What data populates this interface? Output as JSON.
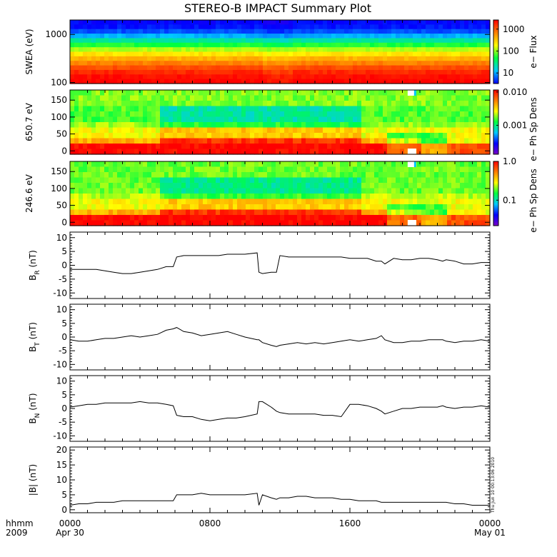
{
  "title": "STEREO-B IMPACT Summary Plot",
  "timestamp": "Thu Jun 10 00:13:06 2010",
  "x_axis": {
    "left_labels": [
      "hhmm",
      "2009"
    ],
    "ticks": [
      {
        "label": "0000",
        "sub": "Apr 30",
        "hour": 0
      },
      {
        "label": "0800",
        "sub": "",
        "hour": 8
      },
      {
        "label": "1600",
        "sub": "",
        "hour": 16
      },
      {
        "label": "0000",
        "sub": "May 01",
        "hour": 24
      }
    ],
    "minor_hours": [
      1,
      2,
      3,
      4,
      5,
      6,
      7,
      9,
      10,
      11,
      12,
      13,
      14,
      15,
      17,
      18,
      19,
      20,
      21,
      22,
      23
    ]
  },
  "colors": {
    "frame": "#000000",
    "trace": "#000000",
    "palette": [
      "#7a00c8",
      "#0000ff",
      "#00c8ff",
      "#00ff40",
      "#ffff00",
      "#ff8000",
      "#ff0000"
    ]
  },
  "chart_data": [
    {
      "type": "heatmap",
      "ylabel": "SWEA (eV)",
      "ylog": true,
      "yticks": [
        {
          "label": "1000",
          "value": 1000
        },
        {
          "label": "100",
          "value": 100
        }
      ],
      "colorbar": {
        "label": "e− Flux",
        "log": true,
        "ticks": [
          {
            "label": "1000",
            "value": 1000
          },
          {
            "label": "100",
            "value": 100
          },
          {
            "label": "10",
            "value": 10
          }
        ]
      },
      "palette_start": 1,
      "level_by_row_top_to_bottom": [
        1.0,
        1.1,
        1.4,
        1.9,
        2.5,
        3.1,
        3.7,
        4.2,
        4.6,
        5.0,
        5.4,
        5.7,
        5.9,
        6.0
      ]
    },
    {
      "type": "heatmap",
      "ylabel": "650.7 eV",
      "yticks": [
        {
          "label": "150",
          "value": 150
        },
        {
          "label": "100",
          "value": 100
        },
        {
          "label": "50",
          "value": 50
        },
        {
          "label": "0",
          "value": 0
        }
      ],
      "colorbar": {
        "label": "e− Ph Sp Dens",
        "log": true,
        "ticks": [
          {
            "label": "0.010",
            "value": 0.01
          },
          {
            "label": "0.001",
            "value": 0.001
          }
        ]
      },
      "palette_start": 0
    },
    {
      "type": "heatmap",
      "ylabel": "246.6 eV",
      "yticks": [
        {
          "label": "150",
          "value": 150
        },
        {
          "label": "100",
          "value": 100
        },
        {
          "label": "50",
          "value": 50
        },
        {
          "label": "0",
          "value": 0
        }
      ],
      "colorbar": {
        "label": "e− Ph Sp Dens",
        "log": true,
        "ticks": [
          {
            "label": "1.0",
            "value": 1.0
          },
          {
            "label": "0.1",
            "value": 0.1
          }
        ]
      },
      "palette_start": 0
    },
    {
      "type": "line",
      "ylabel": "B_R (nT)",
      "ylabel_main": "B",
      "ylabel_sub": "R",
      "ylabel_unit": " (nT)",
      "ylim": [
        -12,
        12
      ],
      "yticks": [
        10,
        5,
        0,
        -5,
        -10
      ],
      "x": [
        0,
        0.5,
        1,
        1.5,
        2,
        2.5,
        3,
        3.5,
        4,
        4.5,
        5,
        5.5,
        5.9,
        6.1,
        6.5,
        7,
        7.5,
        8,
        8.5,
        9,
        9.5,
        10,
        10.7,
        10.8,
        11,
        11.5,
        11.8,
        12,
        12.5,
        13,
        13.5,
        14,
        14.5,
        15,
        15.5,
        16,
        16.5,
        17,
        17.5,
        17.8,
        18,
        18.5,
        19,
        19.5,
        20,
        20.5,
        21,
        21.3,
        21.5,
        22,
        22.5,
        23,
        23.5,
        24
      ],
      "y": [
        -1.5,
        -1.5,
        -1.5,
        -1.5,
        -2.0,
        -2.5,
        -3.0,
        -3.0,
        -2.5,
        -2.0,
        -1.5,
        -0.5,
        -0.5,
        3.0,
        3.5,
        3.5,
        3.5,
        3.5,
        3.5,
        4.0,
        4.0,
        4.0,
        4.5,
        -2.5,
        -3.0,
        -2.5,
        -2.5,
        3.5,
        3.0,
        3.0,
        3.0,
        3.0,
        3.0,
        3.0,
        3.0,
        2.5,
        2.5,
        2.5,
        1.5,
        1.5,
        0.5,
        2.5,
        2.0,
        2.0,
        2.5,
        2.5,
        2.0,
        1.5,
        2.0,
        1.5,
        0.5,
        0.5,
        1.0,
        1.0
      ]
    },
    {
      "type": "line",
      "ylabel": "B_T (nT)",
      "ylabel_main": "B",
      "ylabel_sub": "T",
      "ylabel_unit": " (nT)",
      "ylim": [
        -12,
        12
      ],
      "yticks": [
        10,
        5,
        0,
        -5,
        -10
      ],
      "x": [
        0,
        0.5,
        1,
        1.5,
        2,
        2.5,
        3,
        3.5,
        4,
        4.5,
        5,
        5.5,
        5.9,
        6.1,
        6.5,
        7,
        7.5,
        8,
        8.5,
        9,
        9.5,
        10,
        10.7,
        10.8,
        11,
        11.5,
        11.8,
        12,
        12.5,
        13,
        13.5,
        14,
        14.5,
        15,
        15.5,
        16,
        16.5,
        17,
        17.5,
        17.8,
        18,
        18.5,
        19,
        19.5,
        20,
        20.5,
        21,
        21.3,
        21.5,
        22,
        22.5,
        23,
        23.5,
        24
      ],
      "y": [
        -1.0,
        -1.5,
        -1.5,
        -1.0,
        -0.5,
        -0.5,
        0.0,
        0.5,
        0.0,
        0.5,
        1.0,
        2.5,
        3.0,
        3.5,
        2.0,
        1.5,
        0.5,
        1.0,
        1.5,
        2.0,
        1.0,
        0.0,
        -1.0,
        -1.0,
        -2.0,
        -3.0,
        -3.5,
        -3.0,
        -2.5,
        -2.0,
        -2.5,
        -2.0,
        -2.5,
        -2.0,
        -1.5,
        -1.0,
        -1.5,
        -1.0,
        -0.5,
        0.5,
        -1.0,
        -2.0,
        -2.0,
        -1.5,
        -1.5,
        -1.0,
        -1.0,
        -1.0,
        -1.5,
        -2.0,
        -1.5,
        -1.5,
        -1.0,
        -1.5
      ]
    },
    {
      "type": "line",
      "ylabel": "B_N (nT)",
      "ylabel_main": "B",
      "ylabel_sub": "N",
      "ylabel_unit": " (nT)",
      "ylim": [
        -12,
        12
      ],
      "yticks": [
        10,
        5,
        0,
        -5,
        -10
      ],
      "x": [
        0,
        0.5,
        1,
        1.5,
        2,
        2.5,
        3,
        3.5,
        4,
        4.5,
        5,
        5.5,
        5.9,
        6.1,
        6.5,
        7,
        7.5,
        8,
        8.5,
        9,
        9.5,
        10,
        10.7,
        10.8,
        11,
        11.5,
        11.8,
        12,
        12.5,
        13,
        13.5,
        14,
        14.5,
        15,
        15.5,
        16,
        16.5,
        17,
        17.5,
        17.8,
        18,
        18.5,
        19,
        19.5,
        20,
        20.5,
        21,
        21.3,
        21.5,
        22,
        22.5,
        23,
        23.5,
        24
      ],
      "y": [
        0.5,
        1.0,
        1.5,
        1.5,
        2.0,
        2.0,
        2.0,
        2.0,
        2.5,
        2.0,
        2.0,
        1.5,
        1.0,
        -2.5,
        -3.0,
        -3.0,
        -4.0,
        -4.5,
        -4.0,
        -3.5,
        -3.5,
        -3.0,
        -2.0,
        2.5,
        2.5,
        0.5,
        -1.0,
        -1.5,
        -2.0,
        -2.0,
        -2.0,
        -2.0,
        -2.5,
        -2.5,
        -3.0,
        1.5,
        1.5,
        1.0,
        0.0,
        -1.0,
        -2.0,
        -1.0,
        0.0,
        0.0,
        0.5,
        0.5,
        0.5,
        1.0,
        0.5,
        0.0,
        0.5,
        0.5,
        1.0,
        0.5
      ]
    },
    {
      "type": "line",
      "ylabel": "|B| (nT)",
      "ylabel_main": "|B|",
      "ylabel_sub": "",
      "ylabel_unit": " (nT)",
      "ylim": [
        -1,
        21
      ],
      "yticks": [
        20,
        15,
        10,
        5,
        0
      ],
      "x": [
        0,
        0.5,
        1,
        1.5,
        2,
        2.5,
        3,
        3.5,
        4,
        4.5,
        5,
        5.5,
        5.9,
        6.1,
        6.5,
        7,
        7.5,
        8,
        8.5,
        9,
        9.5,
        10,
        10.7,
        10.8,
        11,
        11.5,
        11.8,
        12,
        12.5,
        13,
        13.5,
        14,
        14.5,
        15,
        15.5,
        16,
        16.5,
        17,
        17.5,
        17.8,
        18,
        18.5,
        19,
        19.5,
        20,
        20.5,
        21,
        21.3,
        21.5,
        22,
        22.5,
        23,
        23.5,
        24
      ],
      "y": [
        1.5,
        2.0,
        2.0,
        2.5,
        2.5,
        2.5,
        3.0,
        3.0,
        3.0,
        3.0,
        3.0,
        3.0,
        3.0,
        5.0,
        5.0,
        5.0,
        5.5,
        5.0,
        5.0,
        5.0,
        5.0,
        5.0,
        5.5,
        1.5,
        5.0,
        4.0,
        3.5,
        4.0,
        4.0,
        4.5,
        4.5,
        4.0,
        4.0,
        4.0,
        3.5,
        3.5,
        3.0,
        3.0,
        3.0,
        2.5,
        2.5,
        2.5,
        2.5,
        2.5,
        2.5,
        2.5,
        2.5,
        2.5,
        2.5,
        2.0,
        2.0,
        1.5,
        1.5,
        1.5
      ]
    }
  ]
}
